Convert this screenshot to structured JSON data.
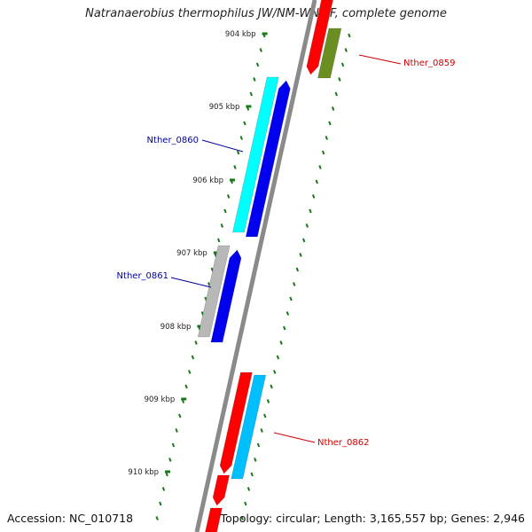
{
  "title": "Natranaerobius thermophilus JW/NM-WN-LF, complete genome",
  "accession": "Accession: NC_010718",
  "summary": "Topology: circular; Length: 3,165,557 bp; Genes: 2,946",
  "colors": {
    "backbone": "#8a8a8a",
    "tick": "#1a7a1a",
    "red": "#ff0000",
    "olive": "#6b8e23",
    "cyan": "#00ffff",
    "skyblue": "#00bfff",
    "blue": "#0000ee",
    "grey": "#b8b8b8",
    "label_red": "#cc0000",
    "label_blue": "#000099"
  },
  "kbp_labels": [
    "904 kbp",
    "905 kbp",
    "906 kbp",
    "907 kbp",
    "908 kbp",
    "909 kbp",
    "910 kbp"
  ],
  "gene_labels": [
    {
      "text": "Nther_0859",
      "color": "label_red"
    },
    {
      "text": "Nther_0860",
      "color": "label_blue"
    },
    {
      "text": "Nther_0861",
      "color": "label_blue"
    },
    {
      "text": "Nther_0862",
      "color": "label_red"
    }
  ]
}
